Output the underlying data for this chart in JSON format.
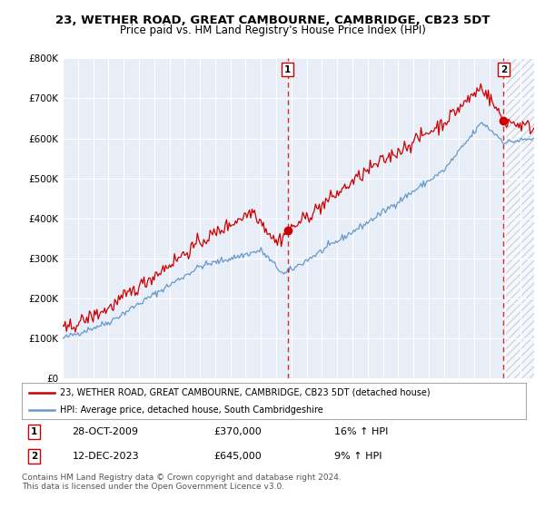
{
  "title": "23, WETHER ROAD, GREAT CAMBOURNE, CAMBRIDGE, CB23 5DT",
  "subtitle": "Price paid vs. HM Land Registry's House Price Index (HPI)",
  "ylim": [
    0,
    800000
  ],
  "yticks": [
    0,
    100000,
    200000,
    300000,
    400000,
    500000,
    600000,
    700000,
    800000
  ],
  "ytick_labels": [
    "£0",
    "£100K",
    "£200K",
    "£300K",
    "£400K",
    "£500K",
    "£600K",
    "£700K",
    "£800K"
  ],
  "background_color": "#ffffff",
  "plot_bg_color": "#e8eef8",
  "grid_color": "#ffffff",
  "red_color": "#cc0000",
  "blue_color": "#6699cc",
  "hatch_color": "#ccccdd",
  "marker1_value": 370000,
  "marker1_date": "28-OCT-2009",
  "marker1_pct": "16% ↑ HPI",
  "marker2_value": 645000,
  "marker2_date": "12-DEC-2023",
  "marker2_pct": "9% ↑ HPI",
  "legend_line1": "23, WETHER ROAD, GREAT CAMBOURNE, CAMBRIDGE, CB23 5DT (detached house)",
  "legend_line2": "HPI: Average price, detached house, South Cambridgeshire",
  "footer": "Contains HM Land Registry data © Crown copyright and database right 2024.\nThis data is licensed under the Open Government Licence v3.0.",
  "title_fontsize": 9.5,
  "subtitle_fontsize": 8.5,
  "start_year": 1995,
  "end_year": 2026
}
